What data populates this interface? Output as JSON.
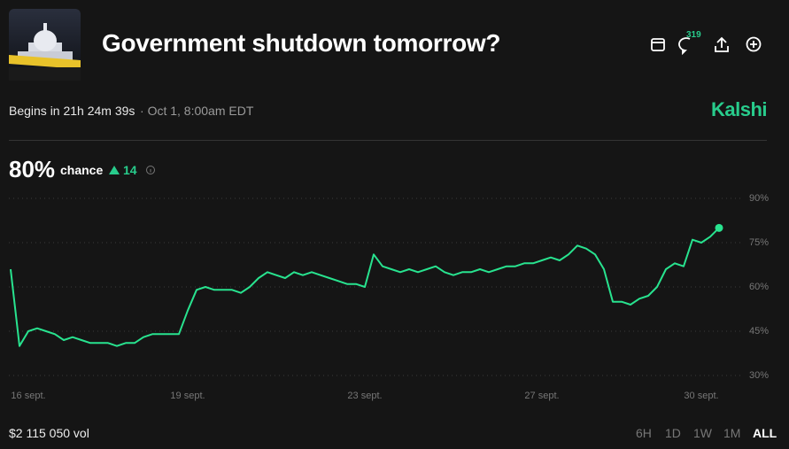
{
  "header": {
    "title": "Government shutdown tomorrow?",
    "comments": "319"
  },
  "info": {
    "begins": "Begins in 21h 24m 39s",
    "date": "Oct 1, 8:00am EDT",
    "brand": "Kalshi"
  },
  "summary": {
    "probability": "80%",
    "chance": "chance",
    "change": "14"
  },
  "footer": {
    "volume": "$2 115 050 vol",
    "ranges": [
      "6H",
      "1D",
      "1W",
      "1M",
      "ALL"
    ]
  },
  "chart_data": {
    "type": "line",
    "categories": [
      null,
      null,
      "16 sept.",
      null,
      null,
      null,
      null,
      null,
      null,
      null,
      null,
      null,
      null,
      null,
      null,
      null,
      null,
      null,
      null,
      null,
      "19 sept.",
      null,
      null,
      null,
      null,
      null,
      null,
      null,
      null,
      null,
      null,
      null,
      null,
      null,
      null,
      null,
      null,
      null,
      null,
      null,
      "23 sept.",
      null,
      null,
      null,
      null,
      null,
      null,
      null,
      null,
      null,
      null,
      null,
      null,
      null,
      null,
      null,
      null,
      null,
      null,
      null,
      "27 sept.",
      null,
      null,
      null,
      null,
      null,
      null,
      null,
      null,
      null,
      null,
      null,
      null,
      null,
      null,
      null,
      null,
      null,
      "30 sept.",
      null,
      null
    ],
    "series": [
      {
        "name": "chance",
        "color": "#28e38f",
        "values": [
          66,
          40,
          45,
          46,
          45,
          44,
          42,
          43,
          42,
          41,
          41,
          41,
          40,
          41,
          41,
          43,
          44,
          44,
          44,
          44,
          52,
          59,
          60,
          59,
          59,
          59,
          58,
          60,
          63,
          65,
          64,
          63,
          65,
          64,
          65,
          64,
          63,
          62,
          61,
          61,
          60,
          71,
          67,
          66,
          65,
          66,
          65,
          66,
          67,
          65,
          64,
          65,
          65,
          66,
          65,
          66,
          67,
          67,
          68,
          68,
          69,
          70,
          69,
          71,
          74,
          73,
          71,
          66,
          55,
          55,
          54,
          56,
          57,
          60,
          66,
          68,
          67,
          76,
          75,
          77,
          80
        ]
      }
    ],
    "ylim": [
      30,
      90
    ],
    "yticks": [
      {
        "value": 30,
        "label": "30%"
      },
      {
        "value": 45,
        "label": "45%"
      },
      {
        "value": 60,
        "label": "60%"
      },
      {
        "value": 75,
        "label": "75%"
      },
      {
        "value": 90,
        "label": "90%"
      }
    ],
    "grid": true
  }
}
